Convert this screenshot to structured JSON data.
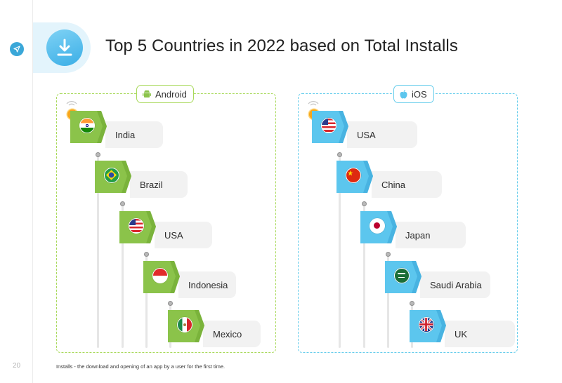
{
  "page": {
    "title": "Top 5 Countries in 2022 based on Total Installs",
    "page_number": "20",
    "footnote": "Installs - the download and opening of an app by a user for the first time."
  },
  "icons": {
    "sidebar": "compass-icon",
    "header": "download-icon",
    "android_badge": "android-icon",
    "ios_badge": "apple-icon",
    "rank": "first-place-medal-icon"
  },
  "colors": {
    "android_accent": "#a8d95a",
    "android_flag": "#8bc34a",
    "ios_accent": "#66cdec",
    "ios_flag": "#5cc6ee"
  },
  "panels": {
    "android": {
      "label": "Android",
      "countries": [
        "India",
        "Brazil",
        "USA",
        "Indonesia",
        "Mexico"
      ]
    },
    "ios": {
      "label": "iOS",
      "countries": [
        "USA",
        "China",
        "Japan",
        "Saudi Arabia",
        "UK"
      ]
    }
  },
  "rank_medal": "1"
}
